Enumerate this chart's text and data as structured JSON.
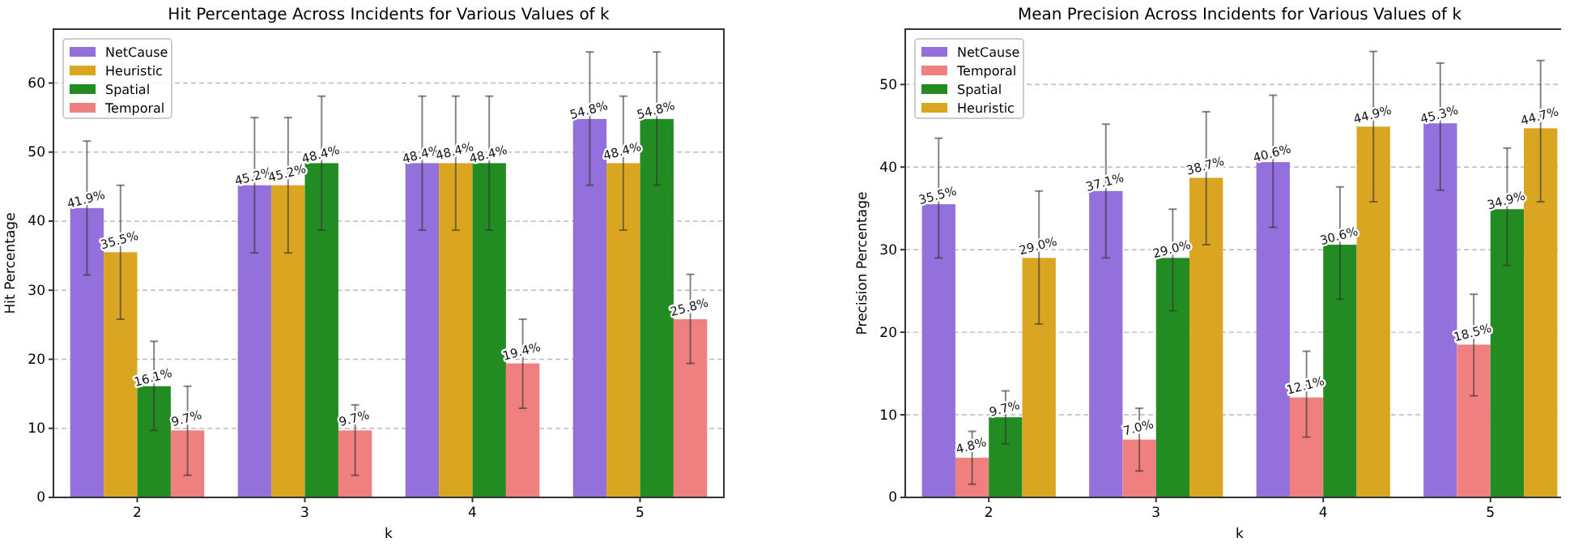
{
  "chart_data": [
    {
      "type": "bar",
      "title": "Hit Percentage Across Incidents for Various Values of k",
      "xlabel": "k",
      "ylabel": "Hit Percentage",
      "categories": [
        "2",
        "3",
        "4",
        "5"
      ],
      "ylim": [
        0,
        67.8
      ],
      "yticks": [
        0,
        10,
        20,
        30,
        40,
        50,
        60
      ],
      "grid": "y",
      "legend": "top left",
      "series": [
        {
          "name": "NetCause",
          "color": "#9370db",
          "values": [
            41.9,
            45.2,
            48.4,
            54.8
          ],
          "value_labels": [
            "41.9%",
            "45.2%",
            "48.4%",
            "54.8%"
          ],
          "errors": [
            [
              32.2,
              51.6
            ],
            [
              35.4,
              55.0
            ],
            [
              38.7,
              58.1
            ],
            [
              45.2,
              64.5
            ]
          ]
        },
        {
          "name": "Heuristic",
          "color": "#daa520",
          "values": [
            35.5,
            45.2,
            48.4,
            48.4
          ],
          "value_labels": [
            "35.5%",
            "45.2%",
            "48.4%",
            "48.4%"
          ],
          "errors": [
            [
              25.8,
              45.2
            ],
            [
              35.4,
              55.0
            ],
            [
              38.7,
              58.1
            ],
            [
              38.7,
              58.1
            ]
          ]
        },
        {
          "name": "Spatial",
          "color": "#228b22",
          "values": [
            16.1,
            48.4,
            48.4,
            54.8
          ],
          "value_labels": [
            "16.1%",
            "48.4%",
            "48.4%",
            "54.8%"
          ],
          "errors": [
            [
              9.7,
              22.6
            ],
            [
              38.7,
              58.1
            ],
            [
              38.7,
              58.1
            ],
            [
              45.2,
              64.5
            ]
          ]
        },
        {
          "name": "Temporal",
          "color": "#f08080",
          "values": [
            9.7,
            9.7,
            19.4,
            25.8
          ],
          "value_labels": [
            "9.7%",
            "9.7%",
            "19.4%",
            "25.8%"
          ],
          "errors": [
            [
              3.2,
              16.1
            ],
            [
              3.2,
              13.4
            ],
            [
              12.9,
              25.8
            ],
            [
              19.4,
              32.3
            ]
          ]
        }
      ]
    },
    {
      "type": "bar",
      "title": "Mean Precision Across Incidents for Various Values of k",
      "xlabel": "k",
      "ylabel": "Precision Percentage",
      "categories": [
        "2",
        "3",
        "4",
        "5"
      ],
      "ylim": [
        0,
        56.7
      ],
      "yticks": [
        0,
        10,
        20,
        30,
        40,
        50
      ],
      "grid": "y",
      "legend": "top left",
      "series": [
        {
          "name": "NetCause",
          "color": "#9370db",
          "values": [
            35.5,
            37.1,
            40.6,
            45.3
          ],
          "value_labels": [
            "35.5%",
            "37.1%",
            "40.6%",
            "45.3%"
          ],
          "errors": [
            [
              29.0,
              43.5
            ],
            [
              29.0,
              45.2
            ],
            [
              32.7,
              48.7
            ],
            [
              37.2,
              52.6
            ]
          ]
        },
        {
          "name": "Temporal",
          "color": "#f08080",
          "values": [
            4.8,
            7.0,
            12.1,
            18.5
          ],
          "value_labels": [
            "4.8%",
            "7.0%",
            "12.1%",
            "18.5%"
          ],
          "errors": [
            [
              1.6,
              8.0
            ],
            [
              3.2,
              10.8
            ],
            [
              7.3,
              17.7
            ],
            [
              12.3,
              24.6
            ]
          ]
        },
        {
          "name": "Spatial",
          "color": "#228b22",
          "values": [
            9.7,
            29.0,
            30.6,
            34.9
          ],
          "value_labels": [
            "9.7%",
            "29.0%",
            "30.6%",
            "34.9%"
          ],
          "errors": [
            [
              6.5,
              12.9
            ],
            [
              22.6,
              34.9
            ],
            [
              24.0,
              37.6
            ],
            [
              28.1,
              42.3
            ]
          ]
        },
        {
          "name": "Heuristic",
          "color": "#daa520",
          "values": [
            29.0,
            38.7,
            44.9,
            44.7
          ],
          "value_labels": [
            "29.0%",
            "38.7%",
            "44.9%",
            "44.7%"
          ],
          "errors": [
            [
              21.0,
              37.1
            ],
            [
              30.6,
              46.7
            ],
            [
              35.8,
              54.0
            ],
            [
              35.8,
              52.9
            ]
          ]
        }
      ]
    }
  ]
}
